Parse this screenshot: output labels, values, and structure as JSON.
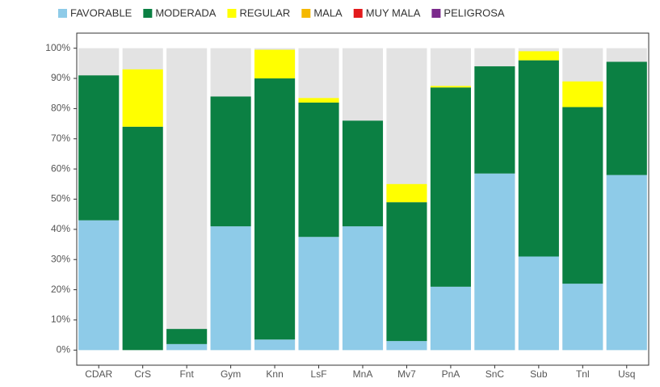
{
  "chart_data": {
    "type": "stacked_bar",
    "categories": [
      "CDAR",
      "CrS",
      "Fnt",
      "Gym",
      "Knn",
      "LsF",
      "MnA",
      "Mv7",
      "PnA",
      "SnC",
      "Sub",
      "Tnl",
      "Usq"
    ],
    "series": [
      {
        "name": "FAVORABLE",
        "color": "#8ecbe8",
        "values": [
          43,
          0,
          2,
          41,
          3.5,
          37.5,
          41,
          3,
          21,
          58.5,
          31,
          22,
          58
        ]
      },
      {
        "name": "MODERADA",
        "color": "#0b8043",
        "values": [
          48,
          74,
          5,
          43,
          86.5,
          44.5,
          35,
          46,
          66,
          35.5,
          65,
          58.5,
          37.5
        ]
      },
      {
        "name": "REGULAR",
        "color": "#ffff00",
        "values": [
          0,
          19,
          0,
          0,
          9.5,
          1.5,
          0,
          6,
          0.5,
          0,
          3,
          8.5,
          0
        ]
      },
      {
        "name": "MALA",
        "color": "#f5b800",
        "values": [
          0,
          0,
          0,
          0,
          0,
          0,
          0,
          0,
          0,
          0,
          0,
          0,
          0
        ]
      },
      {
        "name": "MUY MALA",
        "color": "#e31a1c",
        "values": [
          0,
          0,
          0,
          0,
          0,
          0,
          0,
          0,
          0,
          0,
          0,
          0,
          0
        ]
      },
      {
        "name": "PELIGROSA",
        "color": "#7b2a8c",
        "values": [
          0,
          0,
          0,
          0,
          0,
          0,
          0,
          0,
          0,
          0,
          0,
          0,
          0
        ]
      }
    ],
    "ylim": [
      -5,
      105
    ],
    "yticks": [
      {
        "value": 0,
        "label": "0%"
      },
      {
        "value": 10,
        "label": "10%"
      },
      {
        "value": 20,
        "label": "20%"
      },
      {
        "value": 30,
        "label": "30%"
      },
      {
        "value": 40,
        "label": "40%"
      },
      {
        "value": 50,
        "label": "50%"
      },
      {
        "value": 60,
        "label": "60%"
      },
      {
        "value": 70,
        "label": "70%"
      },
      {
        "value": 80,
        "label": "80%"
      },
      {
        "value": 90,
        "label": "90%"
      },
      {
        "value": 100,
        "label": "100%"
      }
    ],
    "legend": "top"
  }
}
